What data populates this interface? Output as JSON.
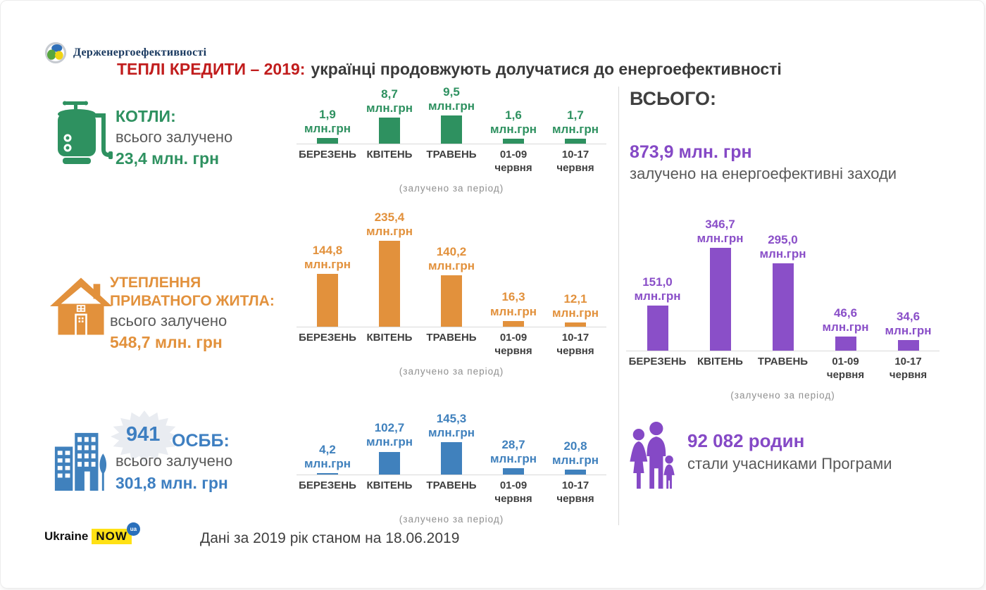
{
  "header": {
    "agency": "Держенергоефективності",
    "title_red": "ТЕПЛІ КРЕДИТИ – 2019:",
    "title_rest": "українці продовжують долучатися до енергоефективності"
  },
  "sections": {
    "boilers": {
      "title": "КОТЛИ:",
      "subtitle": "всього залучено",
      "total": "23,4 млн. грн"
    },
    "insulation": {
      "title_line1": "УТЕПЛЕННЯ",
      "title_line2": "ПРИВАТНОГО ЖИТЛА:",
      "subtitle": "всього залучено",
      "total": "548,7 млн. грн"
    },
    "osbb": {
      "count": "941",
      "title": "ОСББ:",
      "subtitle": "всього залучено",
      "total": "301,8 млн. грн"
    },
    "total": {
      "heading": "ВСЬОГО:",
      "amount": "873,9 млн. грн",
      "amount_caption": "залучено на енергоефективні заходи",
      "families_count": "92 082 родин",
      "families_caption": "стали учасниками Програми"
    }
  },
  "chart_data": [
    {
      "type": "bar",
      "title": "КОТЛИ — залучено за період",
      "categories": [
        "БЕРЕЗЕНЬ",
        "КВІТЕНЬ",
        "ТРАВЕНЬ",
        "01-09 червня",
        "10-17 червня"
      ],
      "categories_display": [
        "БЕРЕЗЕНЬ",
        "КВІТЕНЬ",
        "ТРАВЕНЬ",
        "01-09\nчервня",
        "10-17\nчервня"
      ],
      "values": [
        1.9,
        8.7,
        9.5,
        1.6,
        1.7
      ],
      "values_display": [
        "1,9",
        "8,7",
        "9,5",
        "1,6",
        "1,7"
      ],
      "unit": "млн.грн",
      "caption": "(залучено  за період)",
      "color": "#2e9160",
      "xlabel": "",
      "ylabel": "млн. грн",
      "grid": false,
      "legend": false
    },
    {
      "type": "bar",
      "title": "УТЕПЛЕННЯ ПРИВАТНОГО ЖИТЛА — залучено за період",
      "categories": [
        "БЕРЕЗЕНЬ",
        "КВІТЕНЬ",
        "ТРАВЕНЬ",
        "01-09 червня",
        "10-17 червня"
      ],
      "categories_display": [
        "БЕРЕЗЕНЬ",
        "КВІТЕНЬ",
        "ТРАВЕНЬ",
        "01-09\nчервня",
        "10-17\nчервня"
      ],
      "values": [
        144.8,
        235.4,
        140.2,
        16.3,
        12.1
      ],
      "values_display": [
        "144,8",
        "235,4",
        "140,2",
        "16,3",
        "12,1"
      ],
      "unit": "млн.грн",
      "caption": "(залучено  за період)",
      "color": "#e2913c",
      "xlabel": "",
      "ylabel": "млн. грн",
      "grid": false,
      "legend": false
    },
    {
      "type": "bar",
      "title": "ОСББ — залучено за період",
      "categories": [
        "БЕРЕЗЕНЬ",
        "КВІТЕНЬ",
        "ТРАВЕНЬ",
        "01-09 червня",
        "10-17 червня"
      ],
      "categories_display": [
        "БЕРЕЗЕНЬ",
        "КВІТЕНЬ",
        "ТРАВЕНЬ",
        "01-09\nчервня",
        "10-17\nчервня"
      ],
      "values": [
        4.2,
        102.7,
        145.3,
        28.7,
        20.8
      ],
      "values_display": [
        "4,2",
        "102,7",
        "145,3",
        "28,7",
        "20,8"
      ],
      "unit": "млн.грн",
      "caption": "(залучено  за період)",
      "color": "#4081bd",
      "xlabel": "",
      "ylabel": "млн. грн",
      "grid": false,
      "legend": false
    },
    {
      "type": "bar",
      "title": "ВСЬОГО — залучено за період",
      "categories": [
        "БЕРЕЗЕНЬ",
        "КВІТЕНЬ",
        "ТРАВЕНЬ",
        "01-09 червня",
        "10-17 червня"
      ],
      "categories_display": [
        "БЕРЕЗЕНЬ",
        "КВІТЕНЬ",
        "ТРАВЕНЬ",
        "01-09\nчервня",
        "10-17\nчервня"
      ],
      "values": [
        151.0,
        346.7,
        295.0,
        46.6,
        34.6
      ],
      "values_display": [
        "151,0",
        "346,7",
        "295,0",
        "46,6",
        "34,6"
      ],
      "unit": "млн.грн",
      "caption": "(залучено  за період)",
      "color": "#8a4fc8",
      "xlabel": "",
      "ylabel": "млн. грн",
      "grid": false,
      "legend": false
    }
  ],
  "footer": {
    "brand_left": "Ukraine",
    "brand_right": "NOW",
    "brand_badge": "ua",
    "note": "Дані за 2019 рік станом на 18.06.2019"
  },
  "colors": {
    "green": "#2e9160",
    "orange": "#e2913c",
    "blue": "#3e7fc1",
    "purple": "#8549c6",
    "red": "#c11d1d",
    "gray_text": "#595959",
    "dark_text": "#3f3f3f",
    "axis": "#d9d9d9"
  }
}
